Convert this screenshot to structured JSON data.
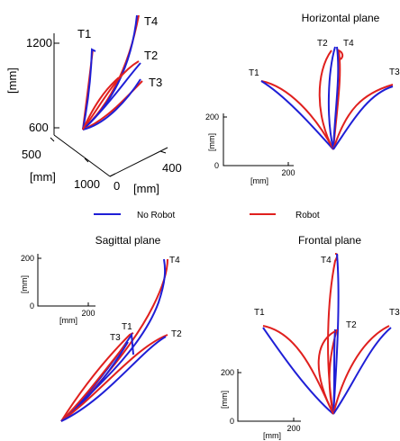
{
  "legend": {
    "no_robot": {
      "label": "No Robot",
      "color": "#1f1fd6"
    },
    "robot": {
      "label": "Robot",
      "color": "#e0201e"
    }
  },
  "chart_data": [
    {
      "type": "line",
      "view": "3d",
      "title": "",
      "axis_labels": {
        "z": "[mm]",
        "depth": "[mm]",
        "x": "[mm]"
      },
      "z_ticks": [
        "1200",
        "600"
      ],
      "depth_ticks": [
        "500",
        "1000"
      ],
      "x_ticks": [
        "0",
        "400"
      ],
      "targets": [
        "T1",
        "T2",
        "T3",
        "T4"
      ]
    },
    {
      "type": "line",
      "title": "Horizontal plane",
      "xlabel": "[mm]",
      "ylabel": "[mm]",
      "x_ticks": [
        "200"
      ],
      "y_ticks": [
        "200",
        "0"
      ],
      "targets": [
        "T1",
        "T2",
        "T3",
        "T4"
      ]
    },
    {
      "type": "line",
      "title": "Sagittal plane",
      "xlabel": "[mm]",
      "ylabel": "[mm]",
      "x_ticks": [
        "200"
      ],
      "y_ticks": [
        "200",
        "0"
      ],
      "targets": [
        "T1",
        "T2",
        "T3",
        "T4"
      ]
    },
    {
      "type": "line",
      "title": "Frontal plane",
      "xlabel": "[mm]",
      "ylabel": "[mm]",
      "x_ticks": [
        "200"
      ],
      "y_ticks": [
        "200",
        "0"
      ],
      "targets": [
        "T1",
        "T2",
        "T3",
        "T4"
      ]
    }
  ]
}
